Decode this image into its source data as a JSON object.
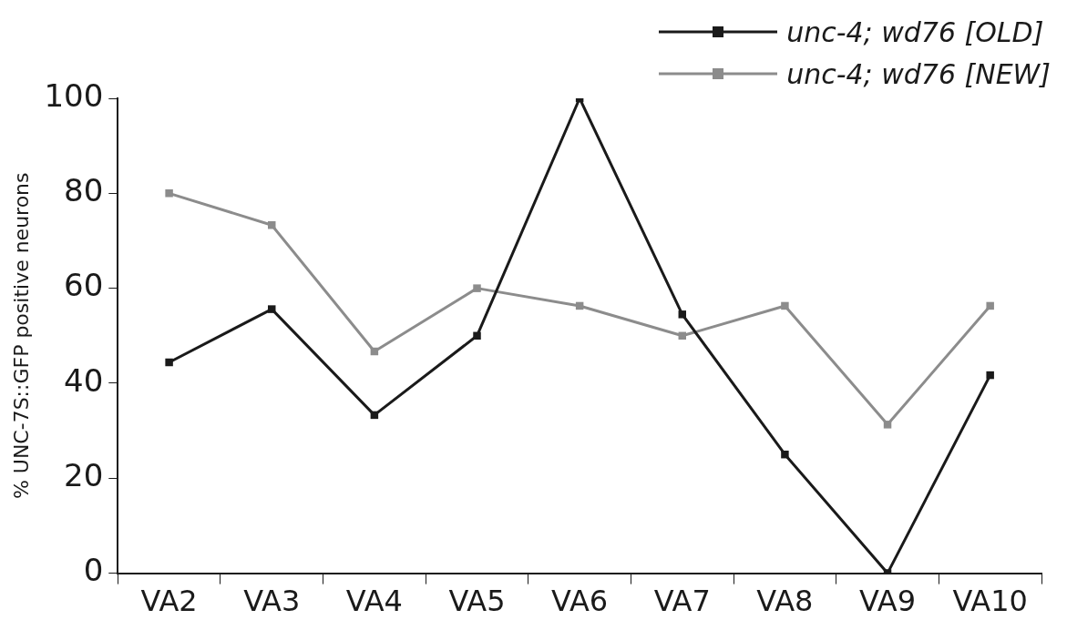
{
  "chart_data": {
    "type": "line",
    "ylabel": "% UNC-7S::GFP positive neurons",
    "categories": [
      "VA2",
      "VA3",
      "VA4",
      "VA5",
      "VA6",
      "VA7",
      "VA8",
      "VA9",
      "VA10"
    ],
    "series": [
      {
        "name": "unc-4; wd76 [OLD]",
        "color": "#1a1a1a",
        "values": [
          44.4,
          55.6,
          33.3,
          50,
          100,
          54.5,
          25,
          0,
          41.7
        ]
      },
      {
        "name": "unc-4; wd76 [NEW]",
        "color": "#8c8c8c",
        "values": [
          80,
          73.3,
          46.7,
          60,
          56.3,
          50,
          56.3,
          31.3,
          56.3
        ]
      }
    ],
    "ylim": [
      0,
      100
    ],
    "yticks": [
      0,
      20,
      40,
      60,
      80,
      100
    ],
    "legend": "top right",
    "marker": "square",
    "line_style": "solid"
  }
}
